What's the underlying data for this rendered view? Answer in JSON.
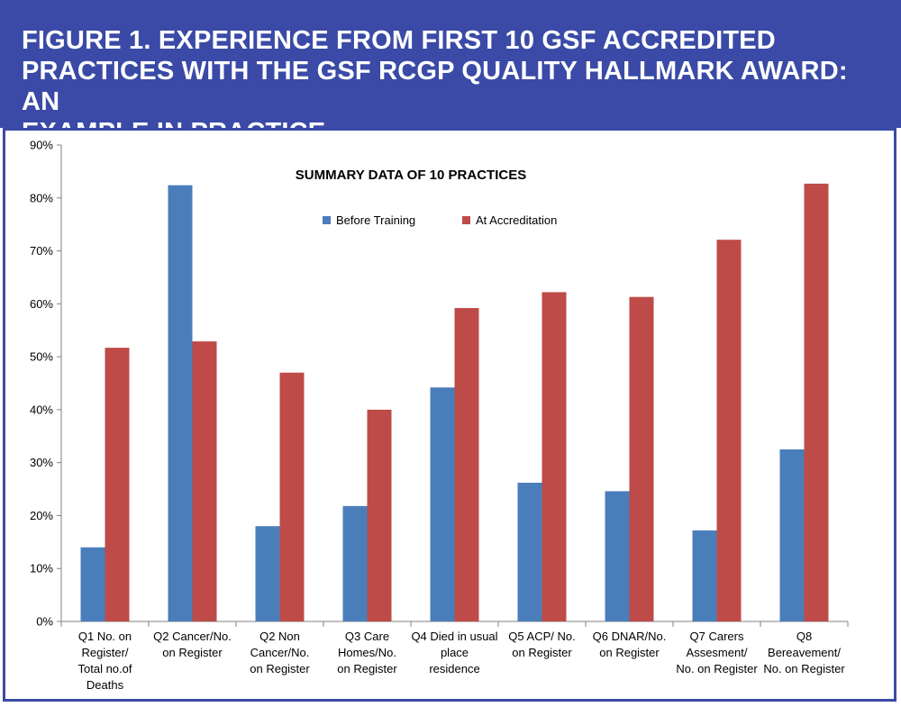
{
  "header": {
    "title_line_1": "FIGURE 1. EXPERIENCE FROM FIRST 10 GSF ACCREDITED",
    "title_line_2": "PRACTICES WITH THE GSF RCGP QUALITY HALLMARK AWARD: AN",
    "title_line_3": "EXAMPLE IN PRACTICE",
    "banner_color": "#3a4aa6"
  },
  "chart_data": {
    "type": "bar",
    "title": "SUMMARY DATA OF 10 PRACTICES",
    "xlabel": "",
    "ylabel": "",
    "ylim": [
      0,
      90
    ],
    "y_ticks": [
      0,
      10,
      20,
      30,
      40,
      50,
      60,
      70,
      80,
      90
    ],
    "y_tick_labels": [
      "0%",
      "10%",
      "20%",
      "30%",
      "40%",
      "50%",
      "60%",
      "70%",
      "80%",
      "90%"
    ],
    "grid": false,
    "legend_position": "top-center",
    "categories": [
      [
        "Q1  No. on",
        "Register/",
        "Total no.of",
        "Deaths"
      ],
      [
        "Q2 Cancer/No.",
        "on Register"
      ],
      [
        "Q2 Non",
        "Cancer/No.",
        "on Register"
      ],
      [
        "Q3 Care",
        "Homes/No.",
        "on Register"
      ],
      [
        "Q4 Died in usual",
        "place",
        "residence"
      ],
      [
        "Q5 ACP/ No.",
        "on Register"
      ],
      [
        "Q6 DNAR/No.",
        "on Register"
      ],
      [
        "Q7 Carers",
        "Assesment/",
        "No. on Register"
      ],
      [
        "Q8",
        "Bereavement/",
        "No. on Register"
      ]
    ],
    "series": [
      {
        "name": "Before Training",
        "color": "#4a7ebb",
        "values": [
          14,
          82.4,
          18,
          21.8,
          44.2,
          26.2,
          24.6,
          17.2,
          32.5
        ]
      },
      {
        "name": "At Accreditation",
        "color": "#be4b48",
        "values": [
          51.7,
          52.9,
          47,
          40,
          59.2,
          62.2,
          61.3,
          72.1,
          82.7
        ]
      }
    ]
  }
}
